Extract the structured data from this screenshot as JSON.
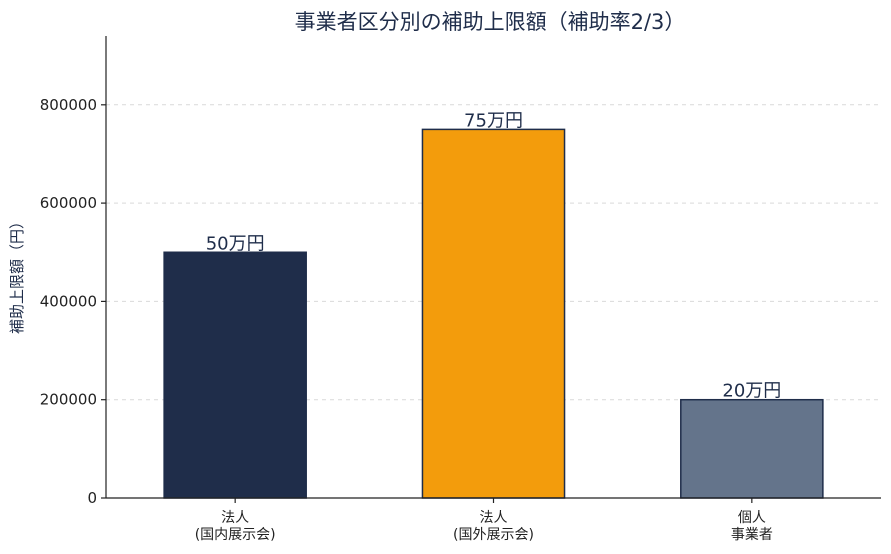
{
  "chart_data": {
    "type": "bar",
    "title": "事業者区分別の補助上限額（補助率2/3）",
    "ylabel": "補助上限額（円）",
    "xlabel": "",
    "categories": [
      [
        "法人",
        "(国内展示会)"
      ],
      [
        "法人",
        "(国外展示会)"
      ],
      [
        "個人",
        "事業者"
      ]
    ],
    "values": [
      500000,
      750000,
      200000
    ],
    "data_labels": [
      "50万円",
      "75万円",
      "20万円"
    ],
    "colors": [
      "#1f2d4a",
      "#f39c0c",
      "#64748b"
    ],
    "ylim": [
      0,
      940000
    ],
    "yticks": [
      0,
      200000,
      400000,
      600000,
      800000
    ],
    "grid": true
  }
}
